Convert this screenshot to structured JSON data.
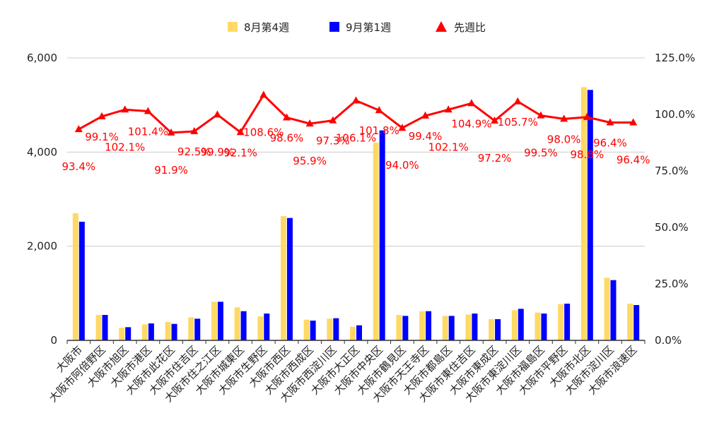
{
  "chart_data": {
    "type": "bar",
    "categories": [
      "大阪市",
      "大阪市阿倍野区",
      "大阪市旭区",
      "大阪市港区",
      "大阪市此花区",
      "大阪市住吉区",
      "大阪市住之江区",
      "大阪市城東区",
      "大阪市生野区",
      "大阪市西区",
      "大阪市西成区",
      "大阪市西淀川区",
      "大阪市大正区",
      "大阪市中央区",
      "大阪市鶴見区",
      "大阪市天王寺区",
      "大阪市都島区",
      "大阪市東住吉区",
      "大阪市東成区",
      "大阪市東淀川区",
      "大阪市福島区",
      "大阪市平野区",
      "大阪市北区",
      "大阪市淀川区",
      "大阪市浪速区"
    ],
    "series": [
      {
        "name": "8月第4週",
        "type": "bar",
        "axis": "left",
        "color": "#ffd966",
        "values": [
          2700,
          540,
          270,
          340,
          390,
          490,
          820,
          700,
          510,
          2640,
          440,
          460,
          290,
          4200,
          540,
          620,
          520,
          550,
          450,
          640,
          590,
          770,
          5380,
          1330,
          780
        ]
      },
      {
        "name": "9月第1週",
        "type": "bar",
        "axis": "left",
        "color": "#0000ff",
        "values": [
          2520,
          540,
          280,
          360,
          350,
          460,
          820,
          620,
          570,
          2600,
          420,
          470,
          320,
          4460,
          520,
          620,
          520,
          570,
          450,
          670,
          570,
          780,
          5320,
          1280,
          750
        ]
      },
      {
        "name": "先週比",
        "type": "line",
        "axis": "right",
        "color": "#ff0000",
        "marker": "triangle",
        "values": [
          93.4,
          99.1,
          102.1,
          101.4,
          91.9,
          92.5,
          99.9,
          92.1,
          108.6,
          98.6,
          95.9,
          97.3,
          106.1,
          101.8,
          94.0,
          99.4,
          102.1,
          104.9,
          97.2,
          105.7,
          99.5,
          98.0,
          98.8,
          96.4,
          96.4
        ],
        "labels": [
          "93.4%",
          "99.1%",
          "102.1%",
          "101.4%",
          "91.9%",
          "92.5%",
          "99.9%",
          "92.1%",
          "108.6%",
          "98.6%",
          "95.9%",
          "97.3%",
          "106.1%",
          "101.8%",
          "94.0%",
          "99.4%",
          "102.1%",
          "104.9%",
          "97.2%",
          "105.7%",
          "99.5%",
          "98.0%",
          "98.8%",
          "96.4%",
          "96.4%"
        ]
      }
    ],
    "y_left": {
      "min": 0,
      "max": 6000,
      "ticks": [
        0,
        2000,
        4000,
        6000
      ],
      "tick_labels": [
        "0",
        "2,000",
        "4,000",
        "6,000"
      ]
    },
    "y_right": {
      "min": 0,
      "max": 125,
      "ticks": [
        0,
        25,
        50,
        75,
        100,
        125
      ],
      "tick_labels": [
        "0.0%",
        "25.0%",
        "50.0%",
        "75.0%",
        "100.0%",
        "125.0%"
      ]
    },
    "grid": true,
    "legend_position": "top-center",
    "axis_color": "#333333",
    "grid_color": "#cccccc"
  }
}
